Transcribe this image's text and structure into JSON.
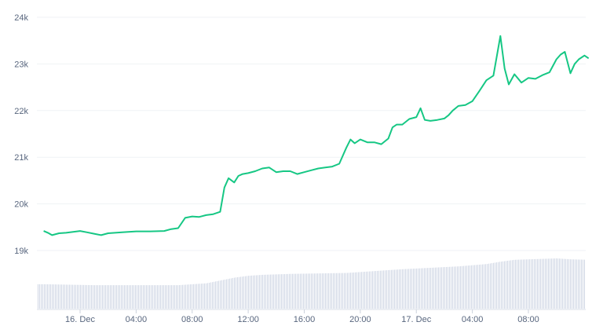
{
  "chart_data": {
    "type": "line",
    "title": "",
    "xlabel": "",
    "ylabel": "",
    "x_range_hours": [
      -2.6,
      15.8
    ],
    "ylim": [
      18500,
      24000
    ],
    "y_ticks": [
      19000,
      20000,
      21000,
      22000,
      23000,
      24000
    ],
    "y_tick_labels": [
      "19k",
      "20k",
      "21k",
      "22k",
      "23k",
      "24k"
    ],
    "x_ticks": [
      {
        "hour": 0,
        "label": "16. Dec"
      },
      {
        "hour": 4,
        "label": "04:00"
      },
      {
        "hour": 8,
        "label": "08:00"
      },
      {
        "hour": 12,
        "label": "12:00"
      },
      {
        "hour": 16,
        "label": "16:00"
      },
      {
        "hour": 20,
        "label": "20:00"
      },
      {
        "hour": 24,
        "label": "17. Dec"
      },
      {
        "hour": 28,
        "label": "04:00"
      },
      {
        "hour": 32,
        "label": "08:00"
      }
    ],
    "grid": true,
    "line_color": "#16c784",
    "price_series": {
      "x_hours": [
        -2.6,
        -2.3,
        -2.0,
        -1.5,
        -1.0,
        -0.5,
        0.0,
        0.5,
        1.0,
        1.5,
        2.0,
        3.0,
        4.0,
        5.0,
        6.0,
        6.5,
        7.0,
        7.5,
        8.0,
        8.5,
        9.0,
        9.5,
        10.0,
        10.3,
        10.6,
        11.0,
        11.3,
        11.6,
        12.0,
        12.5,
        13.0,
        13.5,
        14.0,
        14.5,
        15.0,
        15.5,
        16.0,
        16.5,
        17.0,
        17.5,
        18.0,
        18.5,
        19.0,
        19.3,
        19.6,
        20.0,
        20.5,
        21.0,
        21.5,
        22.0,
        22.3,
        22.6,
        23.0,
        23.5,
        24.0,
        24.3,
        24.6,
        25.0,
        25.5,
        26.0,
        26.3,
        26.6,
        27.0,
        27.5,
        28.0,
        28.5,
        29.0,
        29.5,
        30.0,
        30.3,
        30.6,
        31.0,
        31.5,
        32.0,
        32.5,
        33.0,
        33.5,
        34.0,
        34.3,
        34.6,
        35.0,
        35.3,
        35.6,
        36.0,
        36.3
      ],
      "values": [
        19420,
        19380,
        19330,
        19370,
        19380,
        19400,
        19420,
        19390,
        19360,
        19330,
        19370,
        19390,
        19410,
        19410,
        19420,
        19460,
        19480,
        19700,
        19730,
        19720,
        19760,
        19780,
        19830,
        20350,
        20550,
        20460,
        20600,
        20640,
        20660,
        20700,
        20760,
        20780,
        20680,
        20700,
        20700,
        20640,
        20680,
        20720,
        20760,
        20780,
        20800,
        20860,
        21200,
        21380,
        21300,
        21380,
        21320,
        21320,
        21280,
        21400,
        21640,
        21700,
        21700,
        21820,
        21860,
        22050,
        21800,
        21780,
        21800,
        21830,
        21900,
        22000,
        22100,
        22120,
        22200,
        22420,
        22650,
        22750,
        23600,
        22900,
        22560,
        22780,
        22600,
        22700,
        22680,
        22760,
        22820,
        23100,
        23200,
        23260,
        22800,
        23000,
        23100,
        23180,
        23120
      ]
    },
    "volume_series": {
      "x_hours": [
        -2.6,
        1.0,
        4.0,
        7.0,
        8.0,
        9.0,
        10.0,
        11.0,
        12.0,
        13.0,
        15.0,
        19.0,
        21.0,
        23.0,
        25.0,
        27.0,
        29.0,
        30.0,
        31.0,
        33.0,
        34.0,
        35.0,
        36.3
      ],
      "values": [
        0.52,
        0.5,
        0.5,
        0.5,
        0.52,
        0.54,
        0.6,
        0.66,
        0.7,
        0.72,
        0.74,
        0.76,
        0.8,
        0.84,
        0.87,
        0.9,
        0.95,
        1.0,
        1.04,
        1.06,
        1.07,
        1.05,
        1.04
      ]
    }
  }
}
